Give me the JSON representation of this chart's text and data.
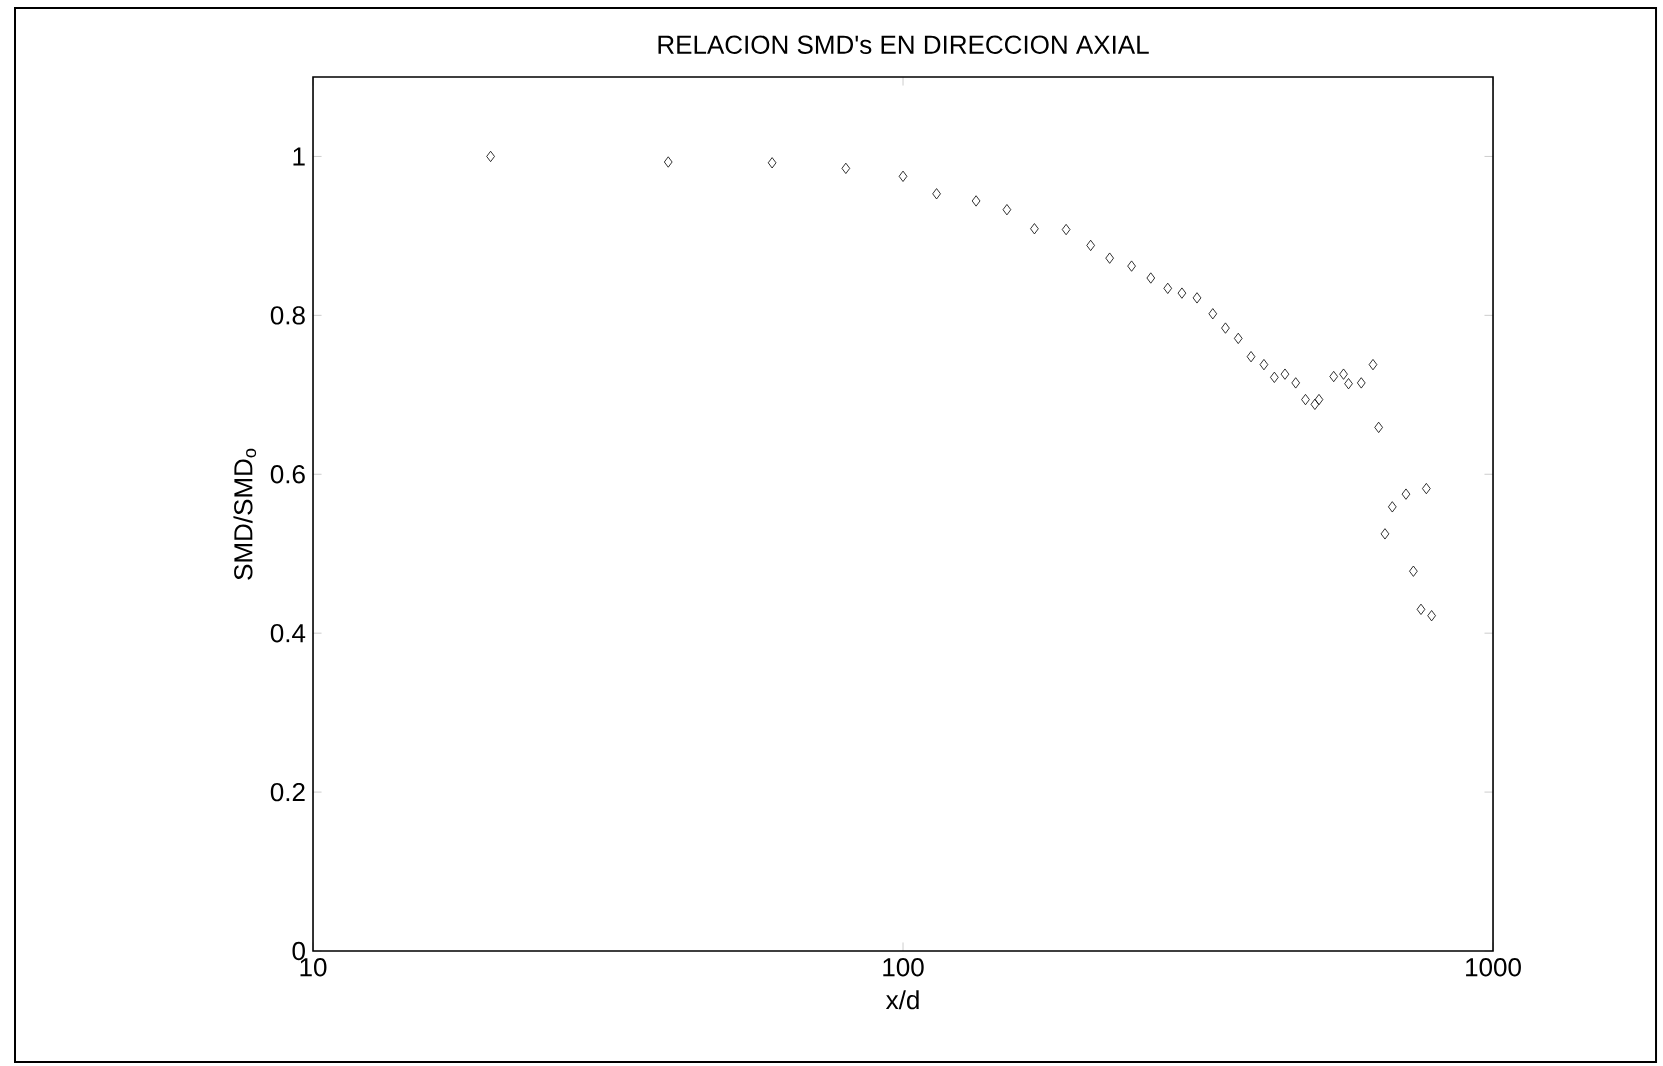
{
  "chart_data": {
    "type": "scatter",
    "title": "RELACION SMD's EN DIRECCION AXIAL",
    "xlabel": "x/d",
    "ylabel": "SMD/SMD$_{o}$",
    "log": "x",
    "marker": "diamond",
    "grid": false,
    "xlim": [
      10,
      1000
    ],
    "xticks": [
      10,
      100,
      1000
    ],
    "ylim": [
      0,
      1.1
    ],
    "yticks": [
      0,
      0.2,
      0.4,
      0.6,
      0.8,
      1
    ],
    "series": [
      {
        "color": "#000000",
        "x": [
          20,
          40,
          60,
          80,
          100,
          114,
          133,
          150,
          167,
          189,
          208,
          224,
          244,
          263,
          281,
          297,
          315,
          335,
          352,
          370,
          389,
          409,
          426,
          444,
          463,
          481,
          499,
          507,
          537,
          558,
          569,
          598,
          626,
          640,
          656,
          675,
          712,
          771,
          733,
          755,
          787
        ],
        "values": [
          1.0,
          0.993,
          0.992,
          0.985,
          0.975,
          0.953,
          0.944,
          0.933,
          0.909,
          0.908,
          0.888,
          0.872,
          0.862,
          0.847,
          0.834,
          0.828,
          0.822,
          0.802,
          0.784,
          0.771,
          0.748,
          0.738,
          0.722,
          0.726,
          0.715,
          0.694,
          0.688,
          0.694,
          0.723,
          0.726,
          0.714,
          0.715,
          0.738,
          0.659,
          0.525,
          0.559,
          0.575,
          0.582,
          0.478,
          0.43,
          0.422
        ]
      }
    ]
  }
}
